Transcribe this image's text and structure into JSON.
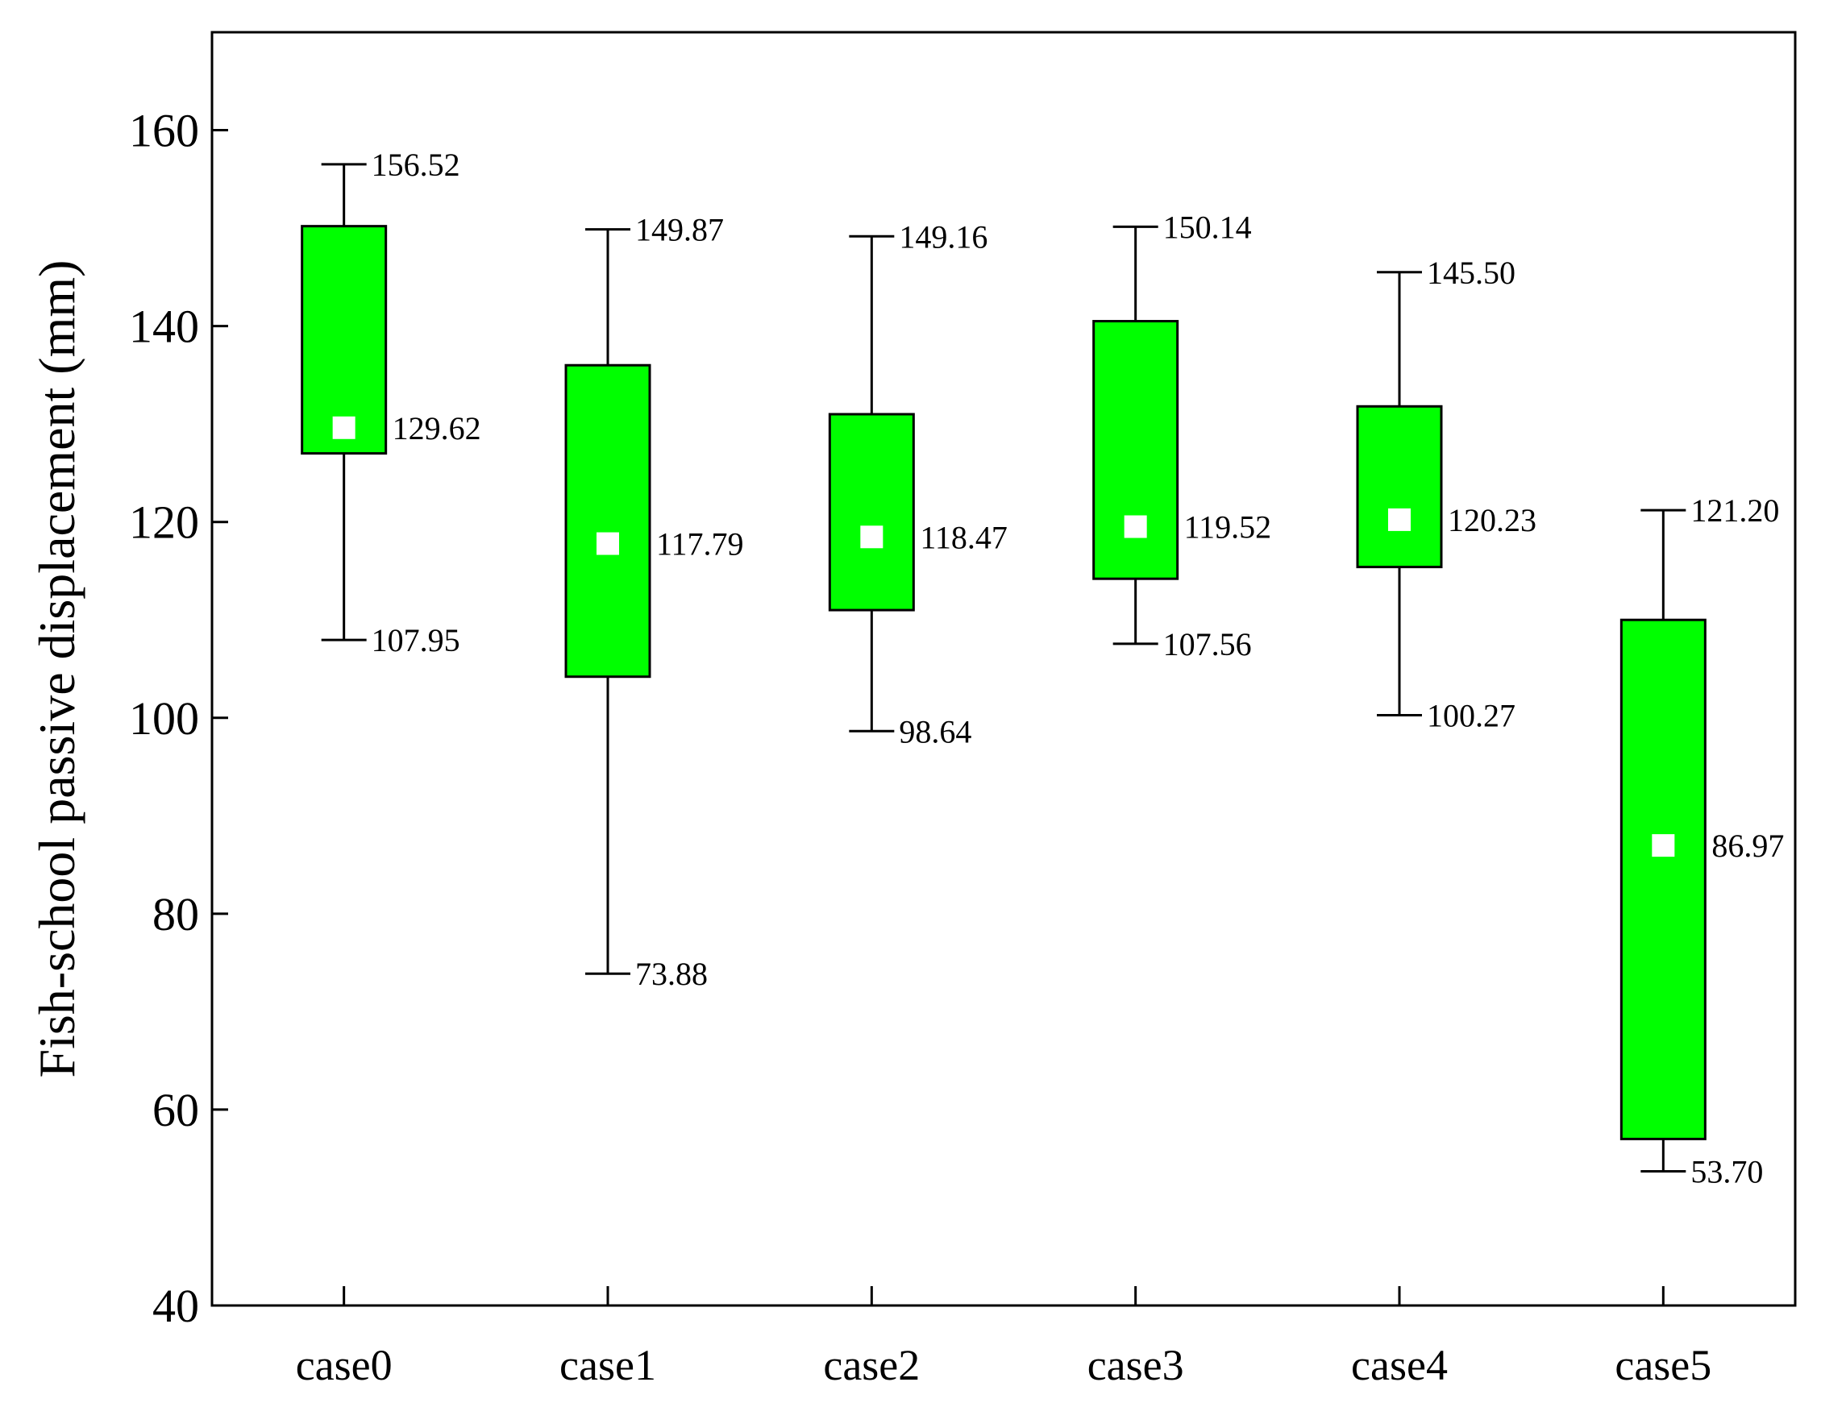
{
  "chart_data": {
    "type": "box",
    "title": "",
    "xlabel": "",
    "ylabel": "Fish-school passive displacement (mm)",
    "ylim": [
      40,
      170
    ],
    "yticks": [
      40,
      60,
      80,
      100,
      120,
      140,
      160
    ],
    "ytick_labels": [
      "40",
      "60",
      "80",
      "100",
      "120",
      "140",
      "160"
    ],
    "grid": false,
    "legend": "none",
    "colors": {
      "box_fill": "#00ff00",
      "box_stroke": "#000000",
      "mean_marker": "#ffffff"
    },
    "categories": [
      "case0",
      "case1",
      "case2",
      "case3",
      "case4",
      "case5"
    ],
    "boxes": [
      {
        "category": "case0",
        "whisker_high": 156.52,
        "q3": 150.2,
        "mean": 129.62,
        "q1": 127.0,
        "whisker_low": 107.95,
        "labels": {
          "whisker_high": "156.52",
          "mean": "129.62",
          "whisker_low": "107.95"
        }
      },
      {
        "category": "case1",
        "whisker_high": 149.87,
        "q3": 136.0,
        "mean": 117.79,
        "q1": 104.2,
        "whisker_low": 73.88,
        "labels": {
          "whisker_high": "149.87",
          "mean": "117.79",
          "whisker_low": "73.88"
        }
      },
      {
        "category": "case2",
        "whisker_high": 149.16,
        "q3": 131.0,
        "mean": 118.47,
        "q1": 111.0,
        "whisker_low": 98.64,
        "labels": {
          "whisker_high": "149.16",
          "mean": "118.47",
          "whisker_low": "98.64"
        }
      },
      {
        "category": "case3",
        "whisker_high": 150.14,
        "q3": 140.5,
        "mean": 119.52,
        "q1": 114.2,
        "whisker_low": 107.56,
        "labels": {
          "whisker_high": "150.14",
          "mean": "119.52",
          "whisker_low": "107.56"
        }
      },
      {
        "category": "case4",
        "whisker_high": 145.5,
        "q3": 131.8,
        "mean": 120.23,
        "q1": 115.4,
        "whisker_low": 100.27,
        "labels": {
          "whisker_high": "145.50",
          "mean": "120.23",
          "whisker_low": "100.27"
        }
      },
      {
        "category": "case5",
        "whisker_high": 121.2,
        "q3": 110.0,
        "mean": 86.97,
        "q1": 57.0,
        "whisker_low": 53.7,
        "labels": {
          "whisker_high": "121.20",
          "mean": "86.97",
          "whisker_low": "53.70"
        }
      }
    ]
  }
}
